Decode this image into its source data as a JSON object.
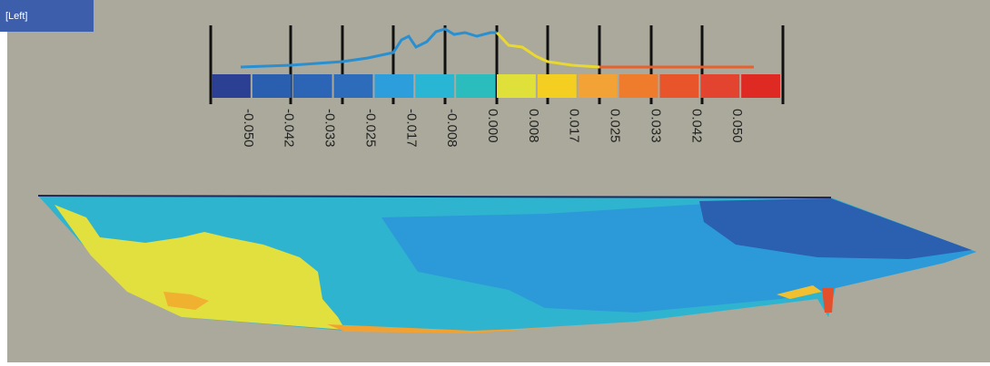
{
  "viewport": {
    "label": "[Left]"
  },
  "color_scale": {
    "labels": [
      "-0.050",
      "-0.042",
      "-0.033",
      "-0.025",
      "-0.017",
      "-0.008",
      "0.000",
      "0.008",
      "0.017",
      "0.025",
      "0.033",
      "0.042",
      "0.050"
    ],
    "bin_colors": [
      "#2b3f93",
      "#2a5fb0",
      "#2c65b6",
      "#2d6bbb",
      "#2c9edb",
      "#29b6d4",
      "#2bbdbd",
      "#e0e03a",
      "#f4cf22",
      "#f3a236",
      "#ef7b2c",
      "#e8552b",
      "#e34430",
      "#df2a24"
    ]
  }
}
